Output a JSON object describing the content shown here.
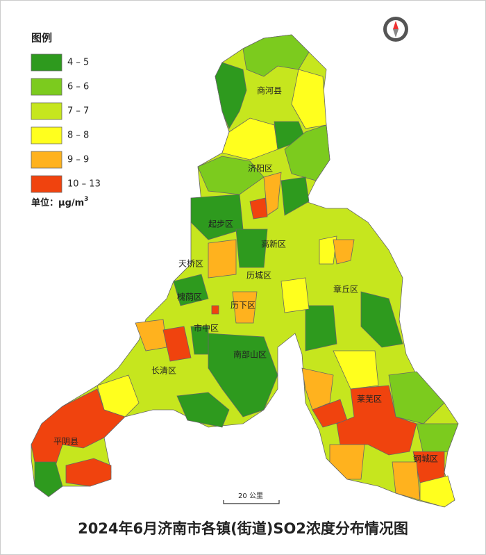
{
  "legend": {
    "title": "图例",
    "items": [
      {
        "label": "4 – 5",
        "color": "#2e9a1e"
      },
      {
        "label": "6 – 6",
        "color": "#7ccb1e"
      },
      {
        "label": "7 – 7",
        "color": "#c6e61e"
      },
      {
        "label": "8 – 8",
        "color": "#ffff1e"
      },
      {
        "label": "9 – 9",
        "color": "#ffb21e"
      },
      {
        "label": "10 – 13",
        "color": "#f0430e"
      }
    ],
    "unit": {
      "text": "单位：μg/m",
      "sup": "3"
    }
  },
  "districts": [
    "商河县",
    "济阳区",
    "起步区",
    "高新区",
    "天桥区",
    "历城区",
    "章丘区",
    "槐荫区",
    "历下区",
    "市中区",
    "南部山区",
    "长清区",
    "莱芜区",
    "平阴县",
    "钢城区"
  ],
  "scale_bar": "20 公里",
  "title": "2024年6月济南市各镇(街道)SO2浓度分布情况图"
}
